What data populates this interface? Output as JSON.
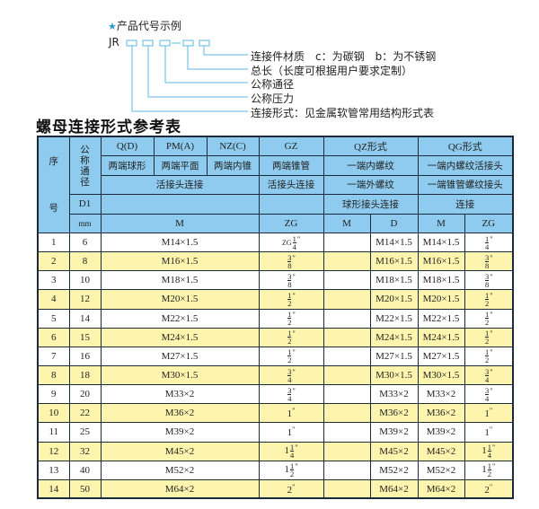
{
  "code_example": {
    "star_icon": "star-icon",
    "title": "产品代号示例",
    "prefix": "JR",
    "dash": "-",
    "box_color": "#5bb8e0",
    "labels": [
      "连接件材质　c：为碳钢　b：为不锈钢",
      "总长（长度可根据用户要求定制）",
      "公称通径",
      "公称压力",
      "连接形式：见金属软管常用结构形式表"
    ]
  },
  "table_title": "螺母连接形式参考表",
  "colors": {
    "header": "#8ecbee",
    "row_alt": "#fdf5ae"
  },
  "header": {
    "seq": "序\n\n\n\n号",
    "nominal": "公\n称\n通\n径",
    "d1": "D1",
    "mm": "mm",
    "row1": [
      "Q(D)",
      "PM(A)",
      "NZ(C)",
      "GZ",
      "QZ形式",
      "QG形式"
    ],
    "row2": [
      "两端球形",
      "两端平面",
      "两端内锥",
      "两端锥管",
      "一端内螺纹",
      "一端内螺纹活接头"
    ],
    "row3": [
      "活接头连接",
      "活接头连接",
      "一端外螺纹",
      "一端锥管螺纹接头"
    ],
    "row4": [
      "",
      "",
      "球形接头连接",
      "连接"
    ],
    "row5": [
      "M",
      "ZG",
      "M",
      "D",
      "M",
      "ZG"
    ]
  },
  "rows": [
    {
      "no": "1",
      "dn": "6",
      "m": "M14×1.5",
      "gz": {
        "prefix": "ZG",
        "whole": "",
        "num": "1",
        "den": "4"
      },
      "qz_m": "",
      "qz_d": "M14×1.5",
      "qg_m": "M14×1.5",
      "qg_zg": {
        "whole": "",
        "num": "1",
        "den": "4"
      }
    },
    {
      "no": "2",
      "dn": "8",
      "m": "M16×1.5",
      "gz": {
        "whole": "",
        "num": "3",
        "den": "8"
      },
      "qz_m": "",
      "qz_d": "M16×1.5",
      "qg_m": "M16×1.5",
      "qg_zg": {
        "whole": "",
        "num": "3",
        "den": "8"
      }
    },
    {
      "no": "3",
      "dn": "10",
      "m": "M18×1.5",
      "gz": {
        "whole": "",
        "num": "3",
        "den": "8"
      },
      "qz_m": "",
      "qz_d": "M18×1.5",
      "qg_m": "M18×1.5",
      "qg_zg": {
        "whole": "",
        "num": "3",
        "den": "8"
      }
    },
    {
      "no": "4",
      "dn": "12",
      "m": "M20×1.5",
      "gz": {
        "whole": "",
        "num": "1",
        "den": "2"
      },
      "qz_m": "",
      "qz_d": "M20×1.5",
      "qg_m": "M20×1.5",
      "qg_zg": {
        "whole": "",
        "num": "1",
        "den": "2"
      }
    },
    {
      "no": "5",
      "dn": "14",
      "m": "M22×1.5",
      "gz": {
        "whole": "",
        "num": "1",
        "den": "2"
      },
      "qz_m": "",
      "qz_d": "M22×1.5",
      "qg_m": "M22×1.5",
      "qg_zg": {
        "whole": "",
        "num": "1",
        "den": "2"
      }
    },
    {
      "no": "6",
      "dn": "15",
      "m": "M24×1.5",
      "gz": {
        "whole": "",
        "num": "1",
        "den": "2"
      },
      "qz_m": "",
      "qz_d": "M24×1.5",
      "qg_m": "M24×1.5",
      "qg_zg": {
        "whole": "",
        "num": "1",
        "den": "2"
      }
    },
    {
      "no": "7",
      "dn": "16",
      "m": "M27×1.5",
      "gz": {
        "whole": "",
        "num": "1",
        "den": "2"
      },
      "qz_m": "",
      "qz_d": "M27×1.5",
      "qg_m": "M27×1.5",
      "qg_zg": {
        "whole": "",
        "num": "1",
        "den": "2"
      }
    },
    {
      "no": "8",
      "dn": "18",
      "m": "M30×1.5",
      "gz": {
        "whole": "",
        "num": "3",
        "den": "4"
      },
      "qz_m": "",
      "qz_d": "M30×1.5",
      "qg_m": "M30×1.5",
      "qg_zg": {
        "whole": "",
        "num": "3",
        "den": "4"
      }
    },
    {
      "no": "9",
      "dn": "20",
      "m": "M33×2",
      "gz": {
        "whole": "",
        "num": "3",
        "den": "4"
      },
      "qz_m": "",
      "qz_d": "M33×2",
      "qg_m": "M33×2",
      "qg_zg": {
        "whole": "",
        "num": "3",
        "den": "4"
      }
    },
    {
      "no": "10",
      "dn": "22",
      "m": "M36×2",
      "gz": {
        "whole": "1",
        "num": "",
        "den": ""
      },
      "qz_m": "",
      "qz_d": "M36×2",
      "qg_m": "M36×2",
      "qg_zg": {
        "whole": "1",
        "num": "",
        "den": ""
      }
    },
    {
      "no": "11",
      "dn": "25",
      "m": "M39×2",
      "gz": {
        "whole": "1",
        "num": "",
        "den": ""
      },
      "qz_m": "",
      "qz_d": "M39×2",
      "qg_m": "M39×2",
      "qg_zg": {
        "whole": "1",
        "num": "",
        "den": ""
      }
    },
    {
      "no": "12",
      "dn": "32",
      "m": "M45×2",
      "gz": {
        "whole": "1",
        "num": "1",
        "den": "4"
      },
      "qz_m": "",
      "qz_d": "M45×2",
      "qg_m": "M45×2",
      "qg_zg": {
        "whole": "1",
        "num": "1",
        "den": "4"
      }
    },
    {
      "no": "13",
      "dn": "40",
      "m": "M52×2",
      "gz": {
        "whole": "1",
        "num": "1",
        "den": "2"
      },
      "qz_m": "",
      "qz_d": "M52×2",
      "qg_m": "M52×2",
      "qg_zg": {
        "whole": "1",
        "num": "1",
        "den": "2"
      }
    },
    {
      "no": "14",
      "dn": "50",
      "m": "M64×2",
      "gz": {
        "whole": "2",
        "num": "",
        "den": ""
      },
      "qz_m": "",
      "qz_d": "M64×2",
      "qg_m": "M64×2",
      "qg_zg": {
        "whole": "2",
        "num": "",
        "den": ""
      }
    }
  ],
  "inch_mark": "\""
}
